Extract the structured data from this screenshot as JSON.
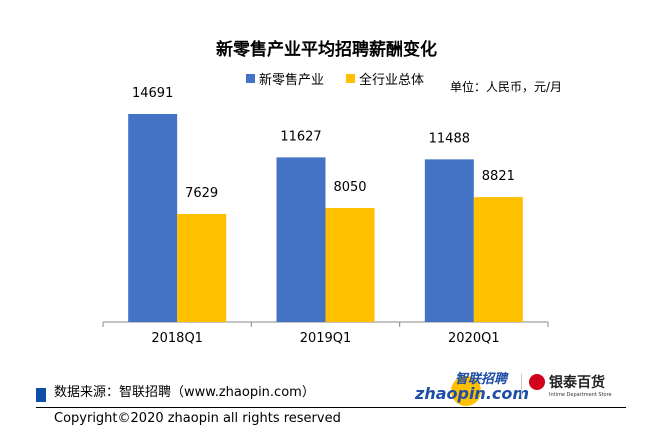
{
  "chart_data": {
    "type": "bar",
    "title": "新零售产业平均招聘薪酬变化",
    "unit_label": "单位：人民币，元/月",
    "categories": [
      "2018Q1",
      "2019Q1",
      "2020Q1"
    ],
    "series": [
      {
        "name": "新零售产业",
        "color": "#4472c4",
        "values": [
          14691,
          11627,
          11488
        ]
      },
      {
        "name": "全行业总体",
        "color": "#ffc000",
        "values": [
          7629,
          8050,
          8821
        ]
      }
    ],
    "ylim": [
      0,
      16000
    ],
    "grid": false,
    "legend": "top"
  },
  "footer": {
    "source": "数据来源：智联招聘（www.zhaopin.com）",
    "copyright": "Copyright©2020 zhaopin all rights reserved",
    "logo_zhaopin": "智联招聘 zhaopin.com",
    "logo_yintai": "银泰百货 Intime Department Store"
  }
}
